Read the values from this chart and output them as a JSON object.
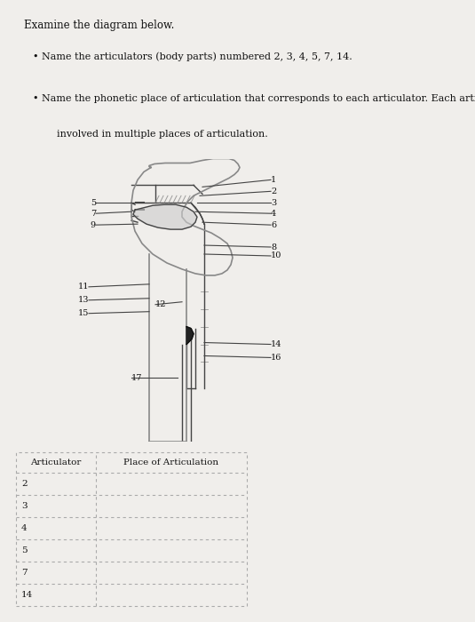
{
  "bg_top": "#f0eeeb",
  "bg_mid": "#ddd9d4",
  "bg_bot": "#ddd9d4",
  "title": "Examine the diagram below.",
  "bullet1": "Name the articulators (body parts) numbered 2, 3, 4, 5, 7, 14.",
  "bullet2_1": "Name the phonetic place of articulation that corresponds to each articulator. Each articulator may be",
  "bullet2_2": "involved in multiple places of articulation.",
  "table_headers": [
    "Articulator",
    "Place of Articulation"
  ],
  "table_rows": [
    "2",
    "3",
    "4",
    "5",
    "7",
    "14"
  ],
  "line_color": "#444444",
  "head_color": "#888888",
  "fill_color": "#cccccc",
  "hatch_color": "#999999",
  "label_color": "#111111",
  "dash_color": "#aaaaaa"
}
